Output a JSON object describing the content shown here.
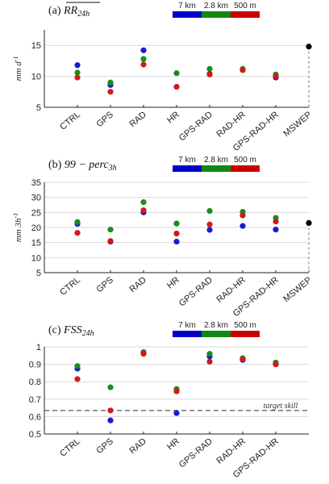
{
  "colors": {
    "7 km": "#1a1ad6",
    "2.8 km": "#1a8c1a",
    "500 m": "#d01a1a",
    "MSWEP": "#000000",
    "grid": "#d9d9d9",
    "legend_bar": {
      "7 km": "#0000cc",
      "2.8 km": "#118811",
      "500 m": "#cc0000"
    }
  },
  "legend": [
    "7 km",
    "2.8 km",
    "500 m"
  ],
  "chart_data": [
    {
      "type": "scatter",
      "panel_label": "(a)",
      "title": "RR",
      "title_sub": "24h",
      "ylabel": "mm d",
      "ylabel_sup": "-1",
      "ylim": [
        5,
        17.5
      ],
      "yticks": [
        5,
        10,
        15
      ],
      "categories": [
        "CTRL",
        "GPS",
        "RAD",
        "HR",
        "GPS-RAD",
        "RAD-HR",
        "GPS-RAD-HR",
        "MSWEP"
      ],
      "grid": true,
      "series": [
        {
          "name": "7 km",
          "values": [
            11.8,
            8.6,
            14.2,
            null,
            10.4,
            null,
            9.8,
            null
          ]
        },
        {
          "name": "2.8 km",
          "values": [
            10.6,
            9.0,
            12.8,
            10.5,
            11.2,
            11.2,
            10.3,
            null
          ]
        },
        {
          "name": "500 m",
          "values": [
            9.8,
            7.5,
            11.9,
            8.3,
            10.3,
            11.0,
            10.0,
            null
          ]
        },
        {
          "name": "MSWEP",
          "values": [
            null,
            null,
            null,
            null,
            null,
            null,
            null,
            14.8
          ]
        }
      ],
      "reference_value": 14.8
    },
    {
      "type": "scatter",
      "panel_label": "(b)",
      "title": "99 − perc",
      "title_sub": "3h",
      "ylabel": "mm 3h",
      "ylabel_sup": "-1",
      "ylim": [
        5,
        35
      ],
      "yticks": [
        5,
        10,
        15,
        20,
        25,
        30,
        35
      ],
      "categories": [
        "CTRL",
        "GPS",
        "RAD",
        "HR",
        "GPS-RAD",
        "RAD-HR",
        "GPS-RAD-HR",
        "MSWEP"
      ],
      "grid": true,
      "series": [
        {
          "name": "7 km",
          "values": [
            21.2,
            15.3,
            25.0,
            15.3,
            19.2,
            20.5,
            19.3,
            null
          ]
        },
        {
          "name": "2.8 km",
          "values": [
            21.8,
            19.3,
            28.4,
            21.3,
            25.5,
            25.2,
            23.2,
            null
          ]
        },
        {
          "name": "500 m",
          "values": [
            18.2,
            15.5,
            25.7,
            18.0,
            21.0,
            24.0,
            22.0,
            null
          ]
        },
        {
          "name": "MSWEP",
          "values": [
            null,
            null,
            null,
            null,
            null,
            null,
            null,
            21.5
          ]
        }
      ],
      "reference_value": 21.5
    },
    {
      "type": "scatter",
      "panel_label": "(c)",
      "title": "FSS",
      "title_sub": "24h",
      "ylabel": "",
      "ylim": [
        0.5,
        1.0
      ],
      "yticks": [
        0.5,
        0.6,
        0.7,
        0.8,
        0.9,
        1.0
      ],
      "categories": [
        "CTRL",
        "GPS",
        "RAD",
        "HR",
        "GPS-RAD",
        "RAD-HR",
        "GPS-RAD-HR"
      ],
      "grid": true,
      "series": [
        {
          "name": "7 km",
          "values": [
            0.875,
            0.578,
            0.965,
            0.62,
            0.945,
            0.925,
            0.9
          ]
        },
        {
          "name": "2.8 km",
          "values": [
            0.89,
            0.768,
            0.97,
            0.758,
            0.96,
            0.935,
            0.91
          ]
        },
        {
          "name": "500 m",
          "values": [
            0.815,
            0.635,
            0.96,
            0.745,
            0.915,
            0.93,
            0.9
          ]
        }
      ],
      "hline": {
        "value": 0.635,
        "label": "target skill"
      }
    }
  ]
}
